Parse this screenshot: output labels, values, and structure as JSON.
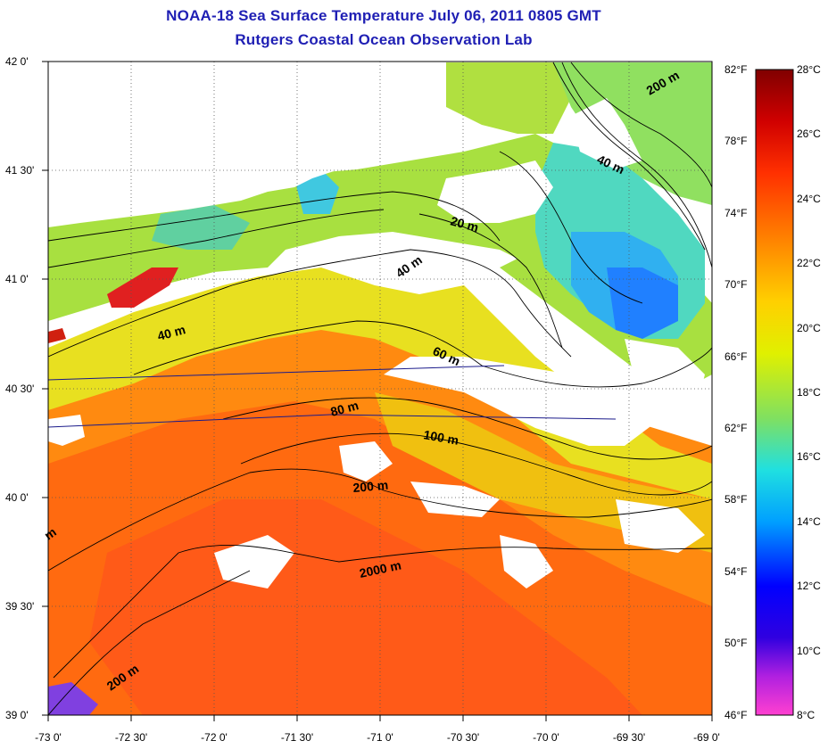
{
  "header": {
    "title": "NOAA-18 Sea Surface Temperature July 06, 2011 0805 GMT",
    "subtitle": "Rutgers Coastal Ocean Observation Lab"
  },
  "map": {
    "latitude_labels": [
      "42 0'",
      "41 30'",
      "41 0'",
      "40 30'",
      "40 0'",
      "39 30'",
      "39 0'"
    ],
    "longitude_labels": [
      "-73 0'",
      "-72 30'",
      "-72 0'",
      "-71 30'",
      "-71 0'",
      "-70 30'",
      "-70 0'",
      "-69 30'",
      "-69 0'"
    ],
    "depth_contour_labels": [
      "200 m",
      "40 m",
      "20 m",
      "40 m",
      "40 m",
      "60 m",
      "80 m",
      "100 m",
      "200 m",
      "2000 m",
      "200 m",
      "m"
    ],
    "land_color": "#ffffff",
    "cloud_color": "#ffffff"
  },
  "colorbar": {
    "fahrenheit_labels": [
      "82°F",
      "78°F",
      "74°F",
      "70°F",
      "66°F",
      "62°F",
      "58°F",
      "54°F",
      "50°F",
      "46°F"
    ],
    "celsius_labels": [
      "28°C",
      "26°C",
      "24°C",
      "22°C",
      "20°C",
      "18°C",
      "16°C",
      "14°C",
      "12°C",
      "10°C",
      "8°C"
    ],
    "range_celsius": [
      8,
      28
    ],
    "range_fahrenheit": [
      46,
      82
    ],
    "colors": [
      "#ff40d0",
      "#7000c0",
      "#0000ff",
      "#00c0ff",
      "#30e0c0",
      "#a0e040",
      "#f0f000",
      "#ffa000",
      "#ff4000",
      "#d00000",
      "#800000"
    ]
  }
}
